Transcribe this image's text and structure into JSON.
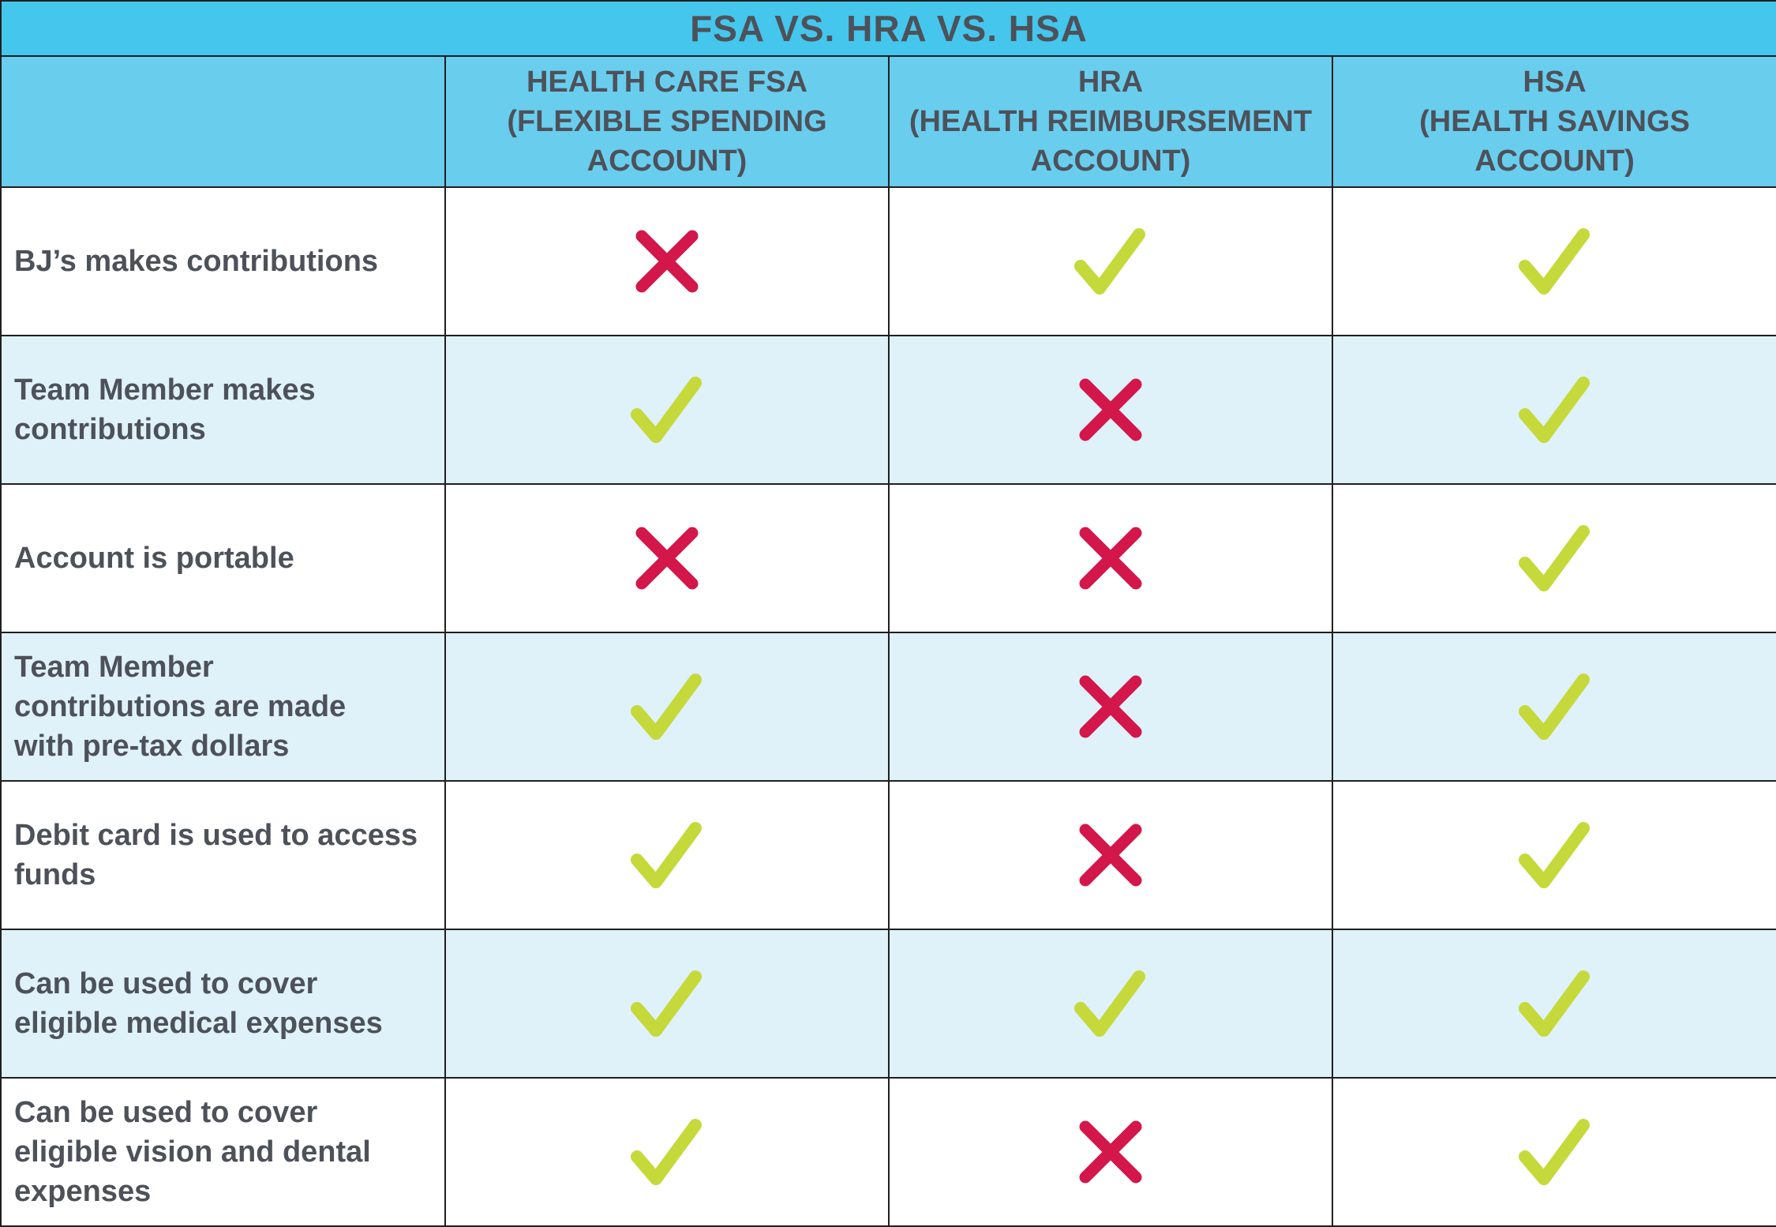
{
  "title": "FSA VS. HRA VS. HSA",
  "columns": [
    "HEALTH CARE FSA\n(FLEXIBLE SPENDING\nACCOUNT)",
    "HRA\n(HEALTH REIMBURSEMENT\nACCOUNT)",
    "HSA\n(HEALTH SAVINGS\nACCOUNT)"
  ],
  "rows": [
    {
      "label": "BJ’s makes contributions",
      "marks": [
        "no",
        "yes",
        "yes"
      ]
    },
    {
      "label": "Team Member makes\ncontributions",
      "marks": [
        "yes",
        "no",
        "yes"
      ]
    },
    {
      "label": "Account is portable",
      "marks": [
        "no",
        "no",
        "yes"
      ]
    },
    {
      "label": "Team Member\ncontributions are made\nwith pre-tax dollars",
      "marks": [
        "yes",
        "no",
        "yes"
      ]
    },
    {
      "label": "Debit card is used to access\nfunds",
      "marks": [
        "yes",
        "no",
        "yes"
      ]
    },
    {
      "label": "Can be used to cover\neligible medical expenses",
      "marks": [
        "yes",
        "yes",
        "yes"
      ]
    },
    {
      "label": "Can be used to cover\neligible vision and dental\nexpenses",
      "marks": [
        "yes",
        "no",
        "yes"
      ]
    }
  ],
  "icons": {
    "yes": "check-icon",
    "no": "x-icon"
  },
  "colors": {
    "title_bg": "#45c6ec",
    "header_bg": "#69cdee",
    "alt_row_bg": "#dff1f9",
    "check": "#c5d93b",
    "cross": "#d3174a",
    "text": "#4d5159"
  }
}
